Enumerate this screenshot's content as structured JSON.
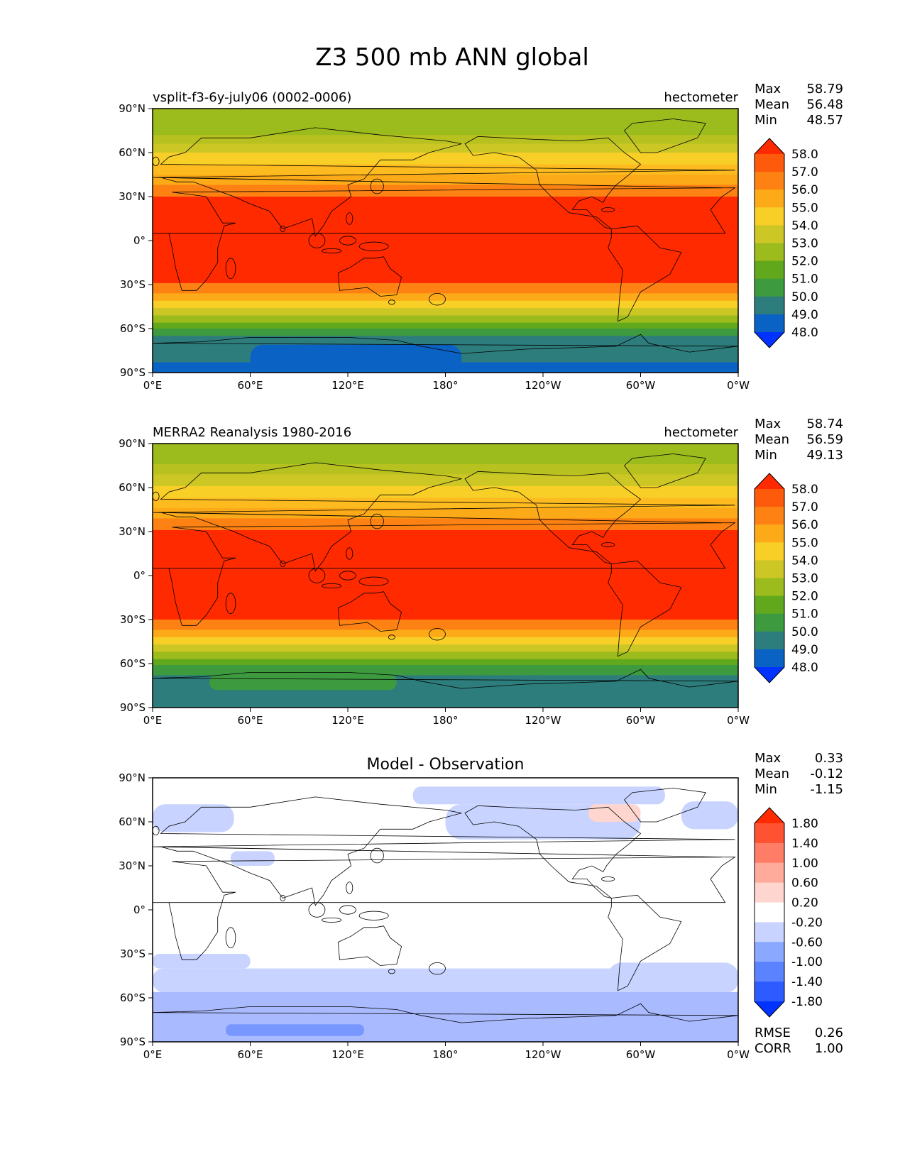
{
  "figure_title": "Z3 500 mb ANN global",
  "lat_ticks": [
    "90°N",
    "60°N",
    "30°N",
    "0°",
    "30°S",
    "60°S",
    "90°S"
  ],
  "lon_ticks": [
    "0°E",
    "60°E",
    "120°E",
    "180°",
    "120°W",
    "60°W",
    "0°W"
  ],
  "chart_data": [
    {
      "type": "heatmap",
      "title_left": "vsplit-f3-6y-july06 (0002-0006)",
      "title_center": "",
      "title_right": "hectometer",
      "stats": [
        {
          "label": "Max",
          "value": "58.79"
        },
        {
          "label": "Mean",
          "value": "56.48"
        },
        {
          "label": "Min",
          "value": "48.57"
        }
      ],
      "colorbar": {
        "levels": [
          "48.0",
          "49.0",
          "50.0",
          "51.0",
          "52.0",
          "53.0",
          "54.0",
          "55.0",
          "56.0",
          "57.0",
          "58.0"
        ],
        "colors": [
          "#0033ff",
          "#0a62c4",
          "#2e7d7d",
          "#3d9a3f",
          "#62a81c",
          "#9cbb1c",
          "#cdc726",
          "#f7cf27",
          "#fdaa18",
          "#fd8213",
          "#fe5a0b",
          "#ff2a00"
        ]
      },
      "bands": [
        {
          "lat": [
            90,
            72
          ],
          "color": "#9cbb1c"
        },
        {
          "lat": [
            72,
            66
          ],
          "color": "#b7c120"
        },
        {
          "lat": [
            66,
            60
          ],
          "color": "#cdc726"
        },
        {
          "lat": [
            60,
            52
          ],
          "color": "#f7cf27"
        },
        {
          "lat": [
            52,
            45
          ],
          "color": "#fdbb20"
        },
        {
          "lat": [
            45,
            38
          ],
          "color": "#fdaa18"
        },
        {
          "lat": [
            38,
            30
          ],
          "color": "#fd8213"
        },
        {
          "lat": [
            30,
            -29
          ],
          "color": "#ff2a00"
        },
        {
          "lat": [
            -29,
            -36
          ],
          "color": "#fd8213"
        },
        {
          "lat": [
            -36,
            -41
          ],
          "color": "#fdaa18"
        },
        {
          "lat": [
            -41,
            -46
          ],
          "color": "#f7cf27"
        },
        {
          "lat": [
            -46,
            -51
          ],
          "color": "#cdc726"
        },
        {
          "lat": [
            -51,
            -56
          ],
          "color": "#9cbb1c"
        },
        {
          "lat": [
            -56,
            -60
          ],
          "color": "#62a81c"
        },
        {
          "lat": [
            -60,
            -65
          ],
          "color": "#3d9a3f"
        },
        {
          "lat": [
            -65,
            -83
          ],
          "color": "#2e7d7d"
        },
        {
          "lat": [
            -83,
            -90
          ],
          "color": "#0a62c4"
        }
      ],
      "patches": [
        {
          "lon": [
            60,
            190
          ],
          "lat": [
            -71,
            -90
          ],
          "color": "#0a62c4"
        }
      ],
      "footer": []
    },
    {
      "type": "heatmap",
      "title_left": "MERRA2 Reanalysis 1980-2016",
      "title_center": "",
      "title_right": "hectometer",
      "stats": [
        {
          "label": "Max",
          "value": "58.74"
        },
        {
          "label": "Mean",
          "value": "56.59"
        },
        {
          "label": "Min",
          "value": "49.13"
        }
      ],
      "colorbar": {
        "levels": [
          "48.0",
          "49.0",
          "50.0",
          "51.0",
          "52.0",
          "53.0",
          "54.0",
          "55.0",
          "56.0",
          "57.0",
          "58.0"
        ],
        "colors": [
          "#0033ff",
          "#0a62c4",
          "#2e7d7d",
          "#3d9a3f",
          "#62a81c",
          "#9cbb1c",
          "#cdc726",
          "#f7cf27",
          "#fdaa18",
          "#fd8213",
          "#fe5a0b",
          "#ff2a00"
        ]
      },
      "bands": [
        {
          "lat": [
            90,
            76
          ],
          "color": "#9cbb1c"
        },
        {
          "lat": [
            76,
            69
          ],
          "color": "#b7c120"
        },
        {
          "lat": [
            69,
            61
          ],
          "color": "#cdc726"
        },
        {
          "lat": [
            61,
            53
          ],
          "color": "#f7cf27"
        },
        {
          "lat": [
            53,
            46
          ],
          "color": "#fdbb20"
        },
        {
          "lat": [
            46,
            39
          ],
          "color": "#fdaa18"
        },
        {
          "lat": [
            39,
            31
          ],
          "color": "#fd8213"
        },
        {
          "lat": [
            31,
            -30
          ],
          "color": "#ff2a00"
        },
        {
          "lat": [
            -30,
            -37
          ],
          "color": "#fd8213"
        },
        {
          "lat": [
            -37,
            -42
          ],
          "color": "#fdaa18"
        },
        {
          "lat": [
            -42,
            -47
          ],
          "color": "#f7cf27"
        },
        {
          "lat": [
            -47,
            -52
          ],
          "color": "#cdc726"
        },
        {
          "lat": [
            -52,
            -57
          ],
          "color": "#9cbb1c"
        },
        {
          "lat": [
            -57,
            -61
          ],
          "color": "#62a81c"
        },
        {
          "lat": [
            -61,
            -68
          ],
          "color": "#3d9a3f"
        },
        {
          "lat": [
            -68,
            -90
          ],
          "color": "#2e7d7d"
        }
      ],
      "patches": [
        {
          "lon": [
            35,
            150
          ],
          "lat": [
            -67,
            -78
          ],
          "color": "#3d9a3f"
        }
      ],
      "footer": []
    },
    {
      "type": "heatmap",
      "title_left": "",
      "title_center": "Model - Observation",
      "title_right": "",
      "stats": [
        {
          "label": "Max",
          "value": "0.33"
        },
        {
          "label": "Mean",
          "value": "-0.12"
        },
        {
          "label": "Min",
          "value": "-1.15"
        }
      ],
      "colorbar": {
        "levels": [
          "-1.80",
          "-1.40",
          "-1.00",
          "-0.60",
          "-0.20",
          "0.20",
          "0.60",
          "1.00",
          "1.40",
          "1.80"
        ],
        "colors": [
          "#0033ff",
          "#2e5bff",
          "#5b82ff",
          "#8aa8ff",
          "#c8d4ff",
          "#ffffff",
          "#ffd6cf",
          "#ffab9c",
          "#ff7d66",
          "#ff5233",
          "#ff2a00"
        ]
      },
      "bands": [
        {
          "lat": [
            -56,
            -75
          ],
          "color": "#a9baff"
        },
        {
          "lat": [
            -75,
            -90
          ],
          "color": "#a9baff"
        }
      ],
      "patches": [
        {
          "lon": [
            0,
            50
          ],
          "lat": [
            72,
            53
          ],
          "color": "#c8d4ff"
        },
        {
          "lon": [
            160,
            315
          ],
          "lat": [
            84,
            72
          ],
          "color": "#c8d4ff"
        },
        {
          "lon": [
            180,
            300
          ],
          "lat": [
            72,
            48
          ],
          "color": "#c8d4ff"
        },
        {
          "lon": [
            325,
            360
          ],
          "lat": [
            74,
            55
          ],
          "color": "#c8d4ff"
        },
        {
          "lon": [
            48,
            75
          ],
          "lat": [
            40,
            30
          ],
          "color": "#c8d4ff"
        },
        {
          "lon": [
            0,
            360
          ],
          "lat": [
            -40,
            -56
          ],
          "color": "#c8d4ff"
        },
        {
          "lon": [
            0,
            60
          ],
          "lat": [
            -30,
            -40
          ],
          "color": "#c8d4ff"
        },
        {
          "lon": [
            280,
            360
          ],
          "lat": [
            -36,
            -56
          ],
          "color": "#c8d4ff"
        },
        {
          "lon": [
            45,
            130
          ],
          "lat": [
            -78,
            -86
          ],
          "color": "#7898ff"
        },
        {
          "lon": [
            268,
            300
          ],
          "lat": [
            72,
            60
          ],
          "color": "#ffd6cf"
        }
      ],
      "footer": [
        {
          "label": "RMSE",
          "value": "0.26"
        },
        {
          "label": "CORR",
          "value": "1.00"
        }
      ]
    }
  ]
}
